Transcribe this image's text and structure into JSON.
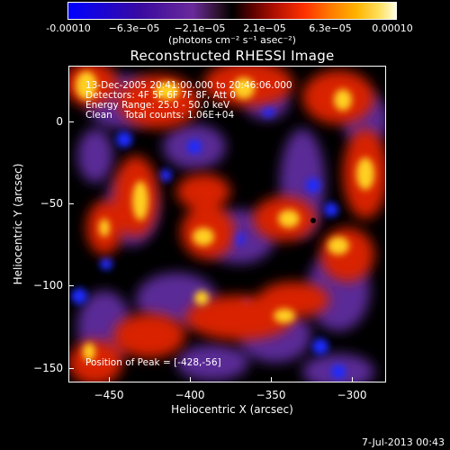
{
  "colorbar": {
    "tick_labels": [
      "-0.00010",
      "−6.3e−05",
      "−2.1e−05",
      "2.1e−05",
      "6.3e−05",
      "0.00010"
    ],
    "unit_label": "(photons cm⁻² s⁻¹ asec⁻²)",
    "range": [
      -0.0001,
      0.0001
    ]
  },
  "title": "Reconstructed RHESSI Image",
  "annotations": {
    "time_range": "13-Dec-2005 20:41:00.000 to 20:46:06.000",
    "detectors": "Detectors: 4F 5F 6F 7F 8F, Att 0",
    "energy_range": "Energy Range: 25.0 - 50.0 keV",
    "algorithm": "Clean    Total counts: 1.06E+04",
    "peak": "Position of Peak = [-428,-56]"
  },
  "chart_data": {
    "type": "heatmap",
    "title": "Reconstructed RHESSI Image",
    "xlabel": "Heliocentric X (arcsec)",
    "ylabel": "Heliocentric Y (arcsec)",
    "xlim": [
      -475,
      -280
    ],
    "ylim": [
      -160,
      30
    ],
    "xticks": [
      -450,
      -400,
      -350,
      -300
    ],
    "yticks": [
      0,
      -50,
      -100,
      -150
    ],
    "xtick_labels": [
      "−450",
      "−400",
      "−350",
      "−300"
    ],
    "ytick_labels": [
      "0",
      "−50",
      "−100",
      "−150"
    ],
    "colormap": "blue-purple-black-red-yellow-white",
    "peak_position": [
      -428,
      -56
    ]
  },
  "footer": {
    "date": "7-Jul-2013 00:43"
  }
}
